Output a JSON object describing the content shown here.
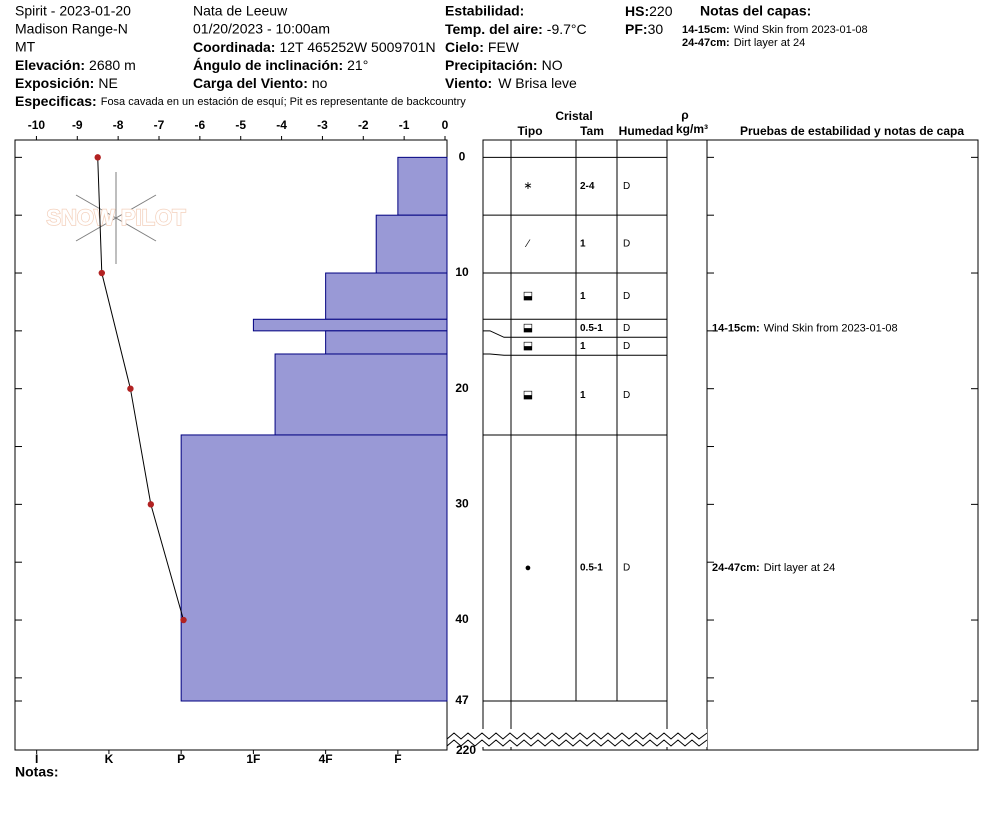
{
  "header": {
    "site": "Spirit - 2023-01-20",
    "range": "Madison Range-N",
    "state": "MT",
    "elevation": {
      "label": "Elevación:",
      "value": "2680 m"
    },
    "aspect": {
      "label": "Exposición:",
      "value": "NE"
    },
    "specifics": {
      "label": "Especificas:",
      "value": "Fosa cavada en un estación de esquí; Pit es representante de backcountry"
    },
    "observer": "Nata de Leeuw",
    "datetime": "01/20/2023 - 10:00am",
    "coords": {
      "label": "Coordinada:",
      "value": "12T 465252W 5009701N"
    },
    "slope": {
      "label": "Ángulo de inclinación:",
      "value": "21°"
    },
    "wind_load": {
      "label": "Carga del Viento:",
      "value": "no"
    },
    "stability": {
      "label": "Estabilidad:"
    },
    "air_temp": {
      "label": "Temp. del aire:",
      "value": "-9.7°C"
    },
    "sky": {
      "label": "Cielo:",
      "value": "FEW"
    },
    "precip": {
      "label": "Precipitación:",
      "value": "NO"
    },
    "wind": {
      "label": "Viento:",
      "value": "W Brisa leve"
    },
    "hs": {
      "label": "HS:",
      "value": "220"
    },
    "pf": {
      "label": "PF:",
      "value": "30"
    },
    "layer_notes_title": "Notas del capas:",
    "notes_label": "Notas:"
  },
  "columns": {
    "cristal": "Cristal",
    "tipo": "Tipo",
    "tam": "Tam",
    "humedad": "Humedad",
    "rho": "ρ",
    "density_unit": "kg/m³",
    "tests": "Pruebas de estabilidad y notas de capa"
  },
  "watermark": "SNOW PILOT",
  "chart_data": {
    "type": "snowpit",
    "xlim": [
      -10.5,
      0
    ],
    "xticks": [
      -10,
      -9,
      -8,
      -7,
      -6,
      -5,
      -4,
      -3,
      -2,
      -1,
      0
    ],
    "ylim": [
      -1.5,
      47
    ],
    "yticks": [
      0,
      10,
      20,
      30,
      40,
      47
    ],
    "yticks_minor": [
      5,
      15,
      25,
      35,
      45
    ],
    "total_depth": 220,
    "hardness_lim": [
      6.3,
      0.32
    ],
    "hardness_ticks": [
      {
        "value": 6,
        "label": "I"
      },
      {
        "value": 5,
        "label": "K"
      },
      {
        "value": 4,
        "label": "P"
      },
      {
        "value": 3,
        "label": "1F"
      },
      {
        "value": 2,
        "label": "4F"
      },
      {
        "value": 1,
        "label": "F"
      }
    ],
    "temperature": {
      "depths": [
        0,
        10,
        20,
        30,
        40
      ],
      "values": [
        -8.5,
        -8.4,
        -7.7,
        -7.2,
        -6.4
      ],
      "color": "#b22222"
    },
    "layers": {
      "top": [
        0,
        5,
        10,
        14,
        15,
        17,
        24
      ],
      "bottom": [
        5,
        10,
        14,
        15,
        17,
        24,
        47
      ],
      "hardness": [
        1,
        1.3,
        2,
        3,
        2,
        2.7,
        4
      ],
      "color": "#9999d6",
      "grain": [
        "∗",
        "⁄",
        "⬓",
        "⬓",
        "⬓",
        "⬓",
        "●"
      ],
      "size": [
        "2-4",
        "1",
        "1",
        "0.5-1",
        "1",
        "1",
        "0.5-1"
      ],
      "moisture": [
        "D",
        "D",
        "D",
        "D",
        "D",
        "D",
        "D"
      ],
      "note_ranges": [
        null,
        null,
        null,
        "14-15cm:",
        null,
        null,
        "24-47cm:"
      ],
      "notes": [
        null,
        null,
        null,
        "Wind Skin from 2023-01-08",
        null,
        null,
        "Dirt layer at 24"
      ]
    }
  }
}
